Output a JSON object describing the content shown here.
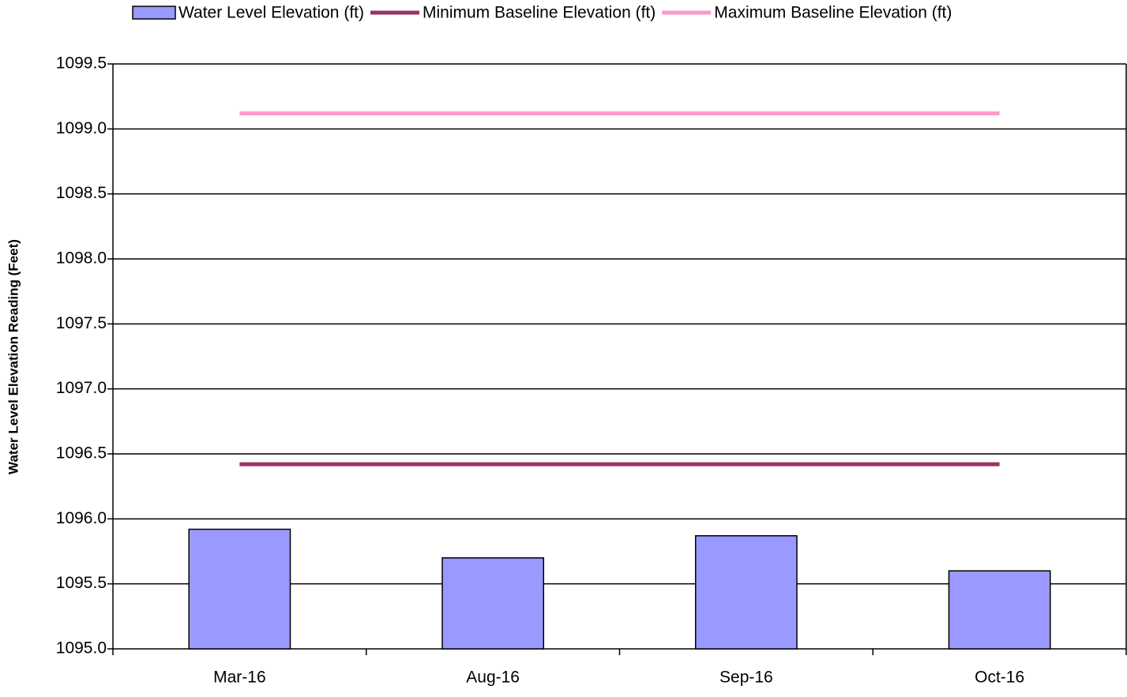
{
  "chart_data": {
    "type": "bar",
    "y_label": "Water Level Elevation Reading (Feet)",
    "categories": [
      "Mar-16",
      "Aug-16",
      "Sep-16",
      "Oct-16"
    ],
    "series": [
      {
        "name": "Water Level Elevation (ft)",
        "type": "bar",
        "color": "#9999ff",
        "values": [
          1095.92,
          1095.7,
          1095.87,
          1095.6
        ]
      },
      {
        "name": "Minimum Baseline Elevation (ft)",
        "type": "line",
        "color": "#993366",
        "values": [
          1096.42,
          1096.42,
          1096.42,
          1096.42
        ]
      },
      {
        "name": "Maximum Baseline Elevation (ft)",
        "type": "line",
        "color": "#ff99cc",
        "values": [
          1099.12,
          1099.12,
          1099.12,
          1099.12
        ]
      }
    ],
    "ylim": [
      1095,
      1099.5
    ],
    "yticks": [
      {
        "value": 1095,
        "label": "1095.0"
      },
      1095.5,
      {
        "value": 1096,
        "label": "1096.0"
      },
      1096.5,
      {
        "value": 1097,
        "label": "1097.0"
      },
      1097.5,
      {
        "value": 1098,
        "label": "1098.0"
      },
      1098.5,
      {
        "value": 1099,
        "label": "1099.0"
      },
      1099.5
    ],
    "grid": true,
    "legend": "top"
  }
}
